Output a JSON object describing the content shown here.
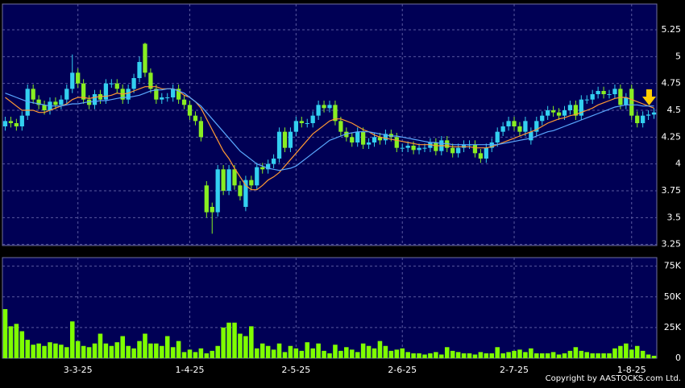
{
  "chart_data": [
    {
      "type": "candlestick",
      "up_color": "#33d0f0",
      "down_color": "#88ee22",
      "xlim": [
        -0.5,
        116.5
      ],
      "ylim": [
        3.24,
        5.49
      ],
      "yticks": [
        3.25,
        3.5,
        3.75,
        4,
        4.25,
        4.5,
        4.75,
        5,
        5.25
      ],
      "open": [
        4.35,
        4.4,
        4.38,
        4.35,
        4.45,
        4.7,
        4.6,
        4.55,
        4.5,
        4.58,
        4.55,
        4.6,
        4.7,
        4.85,
        4.75,
        4.6,
        4.55,
        4.65,
        4.6,
        4.75,
        4.75,
        4.7,
        4.6,
        4.7,
        4.8,
        5.12,
        4.85,
        4.7,
        4.6,
        4.62,
        4.62,
        4.7,
        4.6,
        4.55,
        4.45,
        4.4,
        3.8,
        3.6,
        3.55,
        3.95,
        3.75,
        3.95,
        3.8,
        3.6,
        3.85,
        3.8,
        3.97,
        3.95,
        4.0,
        4.05,
        4.3,
        4.15,
        4.3,
        4.4,
        4.38,
        4.38,
        4.45,
        4.55,
        4.52,
        4.55,
        4.4,
        4.3,
        4.25,
        4.2,
        4.3,
        4.18,
        4.2,
        4.25,
        4.22,
        4.28,
        4.25,
        4.15,
        4.15,
        4.17,
        4.13,
        4.15,
        4.15,
        4.2,
        4.12,
        4.22,
        4.15,
        4.1,
        4.15,
        4.18,
        4.18,
        4.1,
        4.05,
        4.15,
        4.2,
        4.3,
        4.35,
        4.4,
        4.35,
        4.3,
        4.22,
        4.3,
        4.4,
        4.45,
        4.5,
        4.48,
        4.45,
        4.5,
        4.55,
        4.45,
        4.6,
        4.6,
        4.65,
        4.68,
        4.65,
        4.65,
        4.7,
        4.55,
        4.7,
        4.45,
        4.38,
        4.45,
        4.46
      ],
      "high": [
        4.44,
        4.44,
        4.42,
        4.49,
        4.74,
        4.74,
        4.64,
        4.59,
        4.62,
        4.62,
        4.64,
        4.74,
        5.02,
        4.89,
        4.79,
        4.64,
        4.69,
        4.69,
        4.79,
        4.79,
        4.79,
        4.74,
        4.74,
        4.84,
        5.0,
        5.13,
        4.89,
        4.74,
        4.66,
        4.66,
        4.74,
        4.74,
        4.64,
        4.59,
        4.49,
        4.44,
        3.84,
        3.64,
        3.99,
        3.99,
        3.99,
        3.99,
        3.84,
        3.89,
        3.89,
        4.01,
        4.01,
        4.04,
        4.09,
        4.34,
        4.34,
        4.34,
        4.44,
        4.44,
        4.42,
        4.49,
        4.59,
        4.59,
        4.59,
        4.59,
        4.44,
        4.34,
        4.29,
        4.34,
        4.34,
        4.24,
        4.29,
        4.29,
        4.32,
        4.32,
        4.29,
        4.19,
        4.21,
        4.21,
        4.19,
        4.19,
        4.24,
        4.24,
        4.26,
        4.26,
        4.19,
        4.19,
        4.22,
        4.22,
        4.22,
        4.14,
        4.19,
        4.24,
        4.34,
        4.39,
        4.44,
        4.44,
        4.39,
        4.44,
        4.34,
        4.44,
        4.49,
        4.54,
        4.54,
        4.52,
        4.54,
        4.59,
        4.59,
        4.64,
        4.64,
        4.69,
        4.72,
        4.72,
        4.69,
        4.74,
        4.74,
        4.66,
        4.74,
        4.49,
        4.49,
        4.5,
        4.52
      ],
      "low": [
        4.31,
        4.34,
        4.31,
        4.31,
        4.41,
        4.56,
        4.51,
        4.46,
        4.46,
        4.51,
        4.51,
        4.56,
        4.66,
        4.71,
        4.56,
        4.51,
        4.51,
        4.56,
        4.56,
        4.71,
        4.66,
        4.56,
        4.56,
        4.66,
        4.76,
        4.81,
        4.66,
        4.56,
        4.56,
        4.58,
        4.58,
        4.56,
        4.51,
        4.41,
        4.36,
        4.21,
        3.5,
        3.35,
        3.51,
        3.71,
        3.71,
        3.76,
        3.66,
        3.56,
        3.76,
        3.76,
        3.91,
        3.91,
        3.96,
        4.01,
        4.11,
        4.11,
        4.26,
        4.34,
        4.34,
        4.34,
        4.41,
        4.48,
        4.48,
        4.36,
        4.26,
        4.21,
        4.16,
        4.16,
        4.14,
        4.14,
        4.16,
        4.18,
        4.18,
        4.21,
        4.11,
        4.11,
        4.11,
        4.09,
        4.09,
        4.11,
        4.11,
        4.08,
        4.08,
        4.11,
        4.06,
        4.06,
        4.11,
        4.14,
        4.06,
        4.01,
        4.01,
        4.11,
        4.16,
        4.26,
        4.31,
        4.31,
        4.26,
        4.26,
        4.18,
        4.26,
        4.36,
        4.41,
        4.44,
        4.41,
        4.41,
        4.46,
        4.41,
        4.41,
        4.56,
        4.56,
        4.61,
        4.61,
        4.61,
        4.61,
        4.51,
        4.51,
        4.41,
        4.34,
        4.34,
        4.41,
        4.42
      ],
      "close": [
        4.4,
        4.38,
        4.35,
        4.45,
        4.7,
        4.6,
        4.55,
        4.5,
        4.58,
        4.55,
        4.6,
        4.7,
        4.85,
        4.75,
        4.6,
        4.55,
        4.65,
        4.6,
        4.75,
        4.75,
        4.7,
        4.6,
        4.7,
        4.8,
        4.95,
        4.85,
        4.7,
        4.6,
        4.62,
        4.62,
        4.7,
        4.6,
        4.55,
        4.45,
        4.4,
        4.25,
        3.55,
        3.55,
        3.95,
        3.75,
        3.95,
        3.8,
        3.7,
        3.85,
        3.8,
        3.97,
        3.95,
        4.0,
        4.05,
        4.3,
        4.15,
        4.3,
        4.4,
        4.38,
        4.38,
        4.45,
        4.55,
        4.52,
        4.55,
        4.4,
        4.3,
        4.25,
        4.2,
        4.3,
        4.18,
        4.2,
        4.25,
        4.22,
        4.28,
        4.25,
        4.15,
        4.15,
        4.17,
        4.13,
        4.15,
        4.15,
        4.2,
        4.12,
        4.22,
        4.15,
        4.1,
        4.15,
        4.18,
        4.18,
        4.1,
        4.05,
        4.15,
        4.2,
        4.3,
        4.35,
        4.4,
        4.35,
        4.3,
        4.4,
        4.3,
        4.4,
        4.45,
        4.5,
        4.48,
        4.45,
        4.5,
        4.55,
        4.45,
        4.6,
        4.6,
        4.65,
        4.68,
        4.65,
        4.65,
        4.7,
        4.55,
        4.62,
        4.45,
        4.38,
        4.45,
        4.46,
        4.48
      ],
      "lines": [
        {
          "color": "#ff9933",
          "values": [
            4.62,
            4.58,
            4.54,
            4.5,
            4.5,
            4.5,
            4.48,
            4.48,
            4.5,
            4.52,
            4.54,
            4.56,
            4.6,
            4.62,
            4.62,
            4.61,
            4.62,
            4.63,
            4.63,
            4.64,
            4.66,
            4.65,
            4.66,
            4.68,
            4.7,
            4.72,
            4.72,
            4.72,
            4.7,
            4.7,
            4.7,
            4.68,
            4.64,
            4.62,
            4.58,
            4.52,
            4.42,
            4.32,
            4.22,
            4.12,
            4.05,
            3.96,
            3.88,
            3.8,
            3.76,
            3.76,
            3.8,
            3.85,
            3.88,
            3.92,
            3.98,
            4.04,
            4.1,
            4.16,
            4.22,
            4.28,
            4.32,
            4.36,
            4.4,
            4.42,
            4.42,
            4.4,
            4.38,
            4.35,
            4.32,
            4.3,
            4.27,
            4.25,
            4.24,
            4.23,
            4.22,
            4.21,
            4.2,
            4.19,
            4.18,
            4.18,
            4.18,
            4.17,
            4.17,
            4.17,
            4.16,
            4.16,
            4.16,
            4.16,
            4.15,
            4.15,
            4.15,
            4.16,
            4.18,
            4.2,
            4.22,
            4.24,
            4.26,
            4.28,
            4.3,
            4.32,
            4.35,
            4.38,
            4.4,
            4.42,
            4.43,
            4.45,
            4.46,
            4.48,
            4.5,
            4.52,
            4.55,
            4.57,
            4.59,
            4.61,
            4.62,
            4.62,
            4.6,
            4.58,
            4.56,
            4.54,
            4.52
          ]
        },
        {
          "color": "#5aa8ff",
          "values": [
            4.66,
            4.64,
            4.62,
            4.6,
            4.58,
            4.57,
            4.56,
            4.55,
            4.54,
            4.54,
            4.54,
            4.55,
            4.56,
            4.56,
            4.57,
            4.58,
            4.58,
            4.59,
            4.59,
            4.6,
            4.61,
            4.62,
            4.62,
            4.63,
            4.64,
            4.66,
            4.68,
            4.69,
            4.69,
            4.7,
            4.7,
            4.68,
            4.66,
            4.62,
            4.58,
            4.54,
            4.48,
            4.42,
            4.36,
            4.3,
            4.24,
            4.18,
            4.12,
            4.08,
            4.04,
            4.0,
            3.98,
            3.96,
            3.95,
            3.94,
            3.95,
            3.96,
            3.98,
            4.02,
            4.06,
            4.1,
            4.14,
            4.18,
            4.22,
            4.24,
            4.26,
            4.28,
            4.29,
            4.3,
            4.3,
            4.3,
            4.29,
            4.28,
            4.27,
            4.26,
            4.26,
            4.25,
            4.24,
            4.23,
            4.22,
            4.21,
            4.2,
            4.2,
            4.19,
            4.19,
            4.18,
            4.18,
            4.18,
            4.18,
            4.18,
            4.18,
            4.18,
            4.18,
            4.18,
            4.19,
            4.2,
            4.21,
            4.22,
            4.23,
            4.24,
            4.26,
            4.28,
            4.3,
            4.31,
            4.33,
            4.35,
            4.37,
            4.39,
            4.41,
            4.43,
            4.45,
            4.47,
            4.49,
            4.51,
            4.53,
            4.54,
            4.55,
            4.55,
            4.55,
            4.54,
            4.54,
            4.54
          ]
        }
      ],
      "grid": true
    },
    {
      "type": "bar",
      "color": "#7fff00",
      "xlim": [
        -0.5,
        116.5
      ],
      "ylim": [
        0,
        82000
      ],
      "yticks": [
        0,
        {
          "value": 25000,
          "label": "25K"
        },
        {
          "value": 50000,
          "label": "50K"
        },
        {
          "value": 75000,
          "label": "75K"
        }
      ],
      "xticks": [
        {
          "value": 13,
          "label": "3-3-25"
        },
        {
          "value": 33,
          "label": "1-4-25"
        },
        {
          "value": 52,
          "label": "2-5-25"
        },
        {
          "value": 71,
          "label": "2-6-25"
        },
        {
          "value": 91,
          "label": "2-7-25"
        },
        {
          "value": 112,
          "label": "1-8-25"
        }
      ],
      "values": [
        40000,
        26000,
        28000,
        22000,
        15000,
        11000,
        12000,
        10000,
        13000,
        12000,
        11000,
        9000,
        30000,
        14000,
        10000,
        9000,
        12000,
        20000,
        12000,
        10000,
        13000,
        18000,
        10000,
        8000,
        14000,
        20000,
        12000,
        12000,
        10000,
        18000,
        9000,
        14000,
        5000,
        7000,
        5000,
        8000,
        4000,
        6000,
        10000,
        25000,
        29000,
        29000,
        20000,
        18000,
        26000,
        8000,
        12000,
        10000,
        7000,
        12000,
        5000,
        10000,
        8000,
        6000,
        13000,
        8000,
        12000,
        6000,
        4000,
        11000,
        6000,
        9000,
        7000,
        5000,
        12000,
        10000,
        8000,
        14000,
        10000,
        6000,
        7000,
        8000,
        5000,
        4000,
        4000,
        3000,
        4000,
        5000,
        3000,
        9000,
        6000,
        5000,
        4000,
        4000,
        3000,
        5000,
        4000,
        4000,
        9000,
        4000,
        5000,
        6000,
        7000,
        5000,
        8000,
        4000,
        4000,
        4000,
        5000,
        3000,
        4000,
        6000,
        9000,
        6000,
        5000,
        4000,
        4000,
        4000,
        4000,
        8000,
        10000,
        12000,
        7000,
        10000,
        6000,
        3000,
        2000
      ],
      "annotation": "Copyright by AASTOCKS.com Ltd.",
      "grid": true
    }
  ]
}
